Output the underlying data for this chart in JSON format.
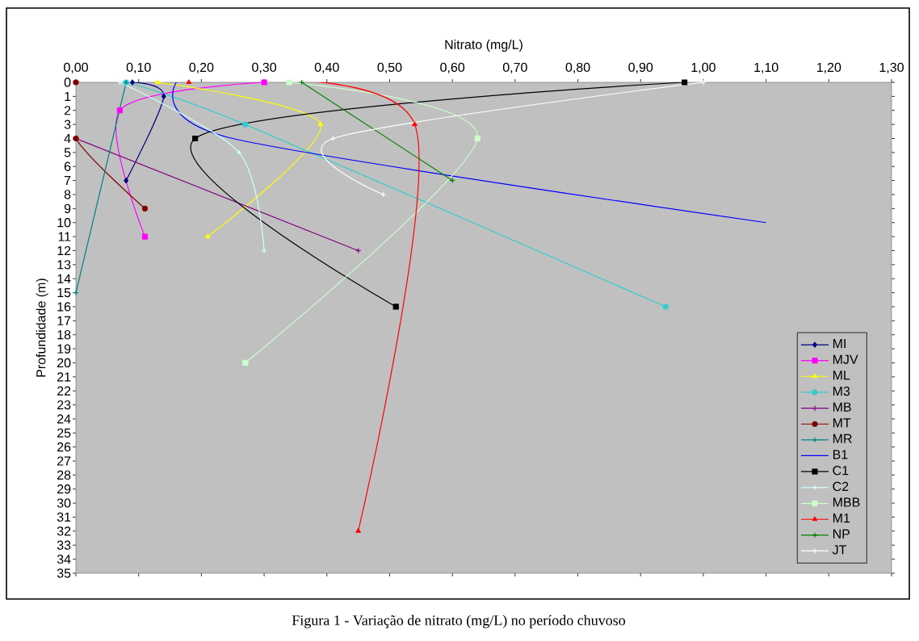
{
  "chart_data": {
    "type": "line",
    "xlabel": "Nitrato (mg/L)",
    "ylabel": "Profundidade (m)",
    "xlim": [
      0,
      1.3
    ],
    "xticks": [
      {
        "value": 0,
        "label": "0,00"
      },
      {
        "value": 0.1,
        "label": "0,10"
      },
      {
        "value": 0.2,
        "label": "0,20"
      },
      {
        "value": 0.3,
        "label": "0,30"
      },
      {
        "value": 0.4,
        "label": "0,40"
      },
      {
        "value": 0.5,
        "label": "0,50"
      },
      {
        "value": 0.6,
        "label": "0,60"
      },
      {
        "value": 0.7,
        "label": "0,70"
      },
      {
        "value": 0.8,
        "label": "0,80"
      },
      {
        "value": 0.9,
        "label": "0,90"
      },
      {
        "value": 1.0,
        "label": "1,00"
      },
      {
        "value": 1.1,
        "label": "1,10"
      },
      {
        "value": 1.2,
        "label": "1,20"
      },
      {
        "value": 1.3,
        "label": "1,30"
      }
    ],
    "ylim": [
      35,
      0
    ],
    "yticks": [
      0,
      1,
      2,
      3,
      4,
      5,
      6,
      7,
      8,
      9,
      10,
      11,
      12,
      13,
      14,
      15,
      16,
      17,
      18,
      19,
      20,
      21,
      22,
      23,
      24,
      25,
      26,
      27,
      28,
      29,
      30,
      31,
      32,
      33,
      34,
      35
    ],
    "legend": "right",
    "series": [
      {
        "name": "MI",
        "color": "#000080",
        "marker": "diamond",
        "x": [
          0.09,
          0.14,
          0.08
        ],
        "values": [
          0,
          1,
          7
        ]
      },
      {
        "name": "MJV",
        "color": "#ff00ff",
        "marker": "square",
        "x": [
          0.3,
          0.07,
          0.11
        ],
        "values": [
          0,
          2,
          11
        ]
      },
      {
        "name": "ML",
        "color": "#ffff00",
        "marker": "triangle",
        "x": [
          0.13,
          0.39,
          0.21
        ],
        "values": [
          0,
          3,
          11
        ]
      },
      {
        "name": "M3",
        "color": "#33cccc",
        "marker": "circle",
        "x": [
          0.08,
          0.27,
          0.94
        ],
        "values": [
          0,
          3,
          16
        ]
      },
      {
        "name": "MB",
        "color": "#800080",
        "marker": "cross",
        "x": [
          0.0,
          0.45
        ],
        "values": [
          4,
          12
        ]
      },
      {
        "name": "MT",
        "color": "#800000",
        "marker": "circle",
        "x": [
          0.0,
          0.0,
          0.11
        ],
        "values": [
          0,
          4,
          9
        ]
      },
      {
        "name": "MR",
        "color": "#008080",
        "marker": "cross",
        "x": [
          0.08,
          0.0
        ],
        "values": [
          0,
          15
        ]
      },
      {
        "name": "B1",
        "color": "#0000ff",
        "marker": "none",
        "x": [
          0.16,
          0.25,
          1.1
        ],
        "values": [
          0,
          4,
          10
        ]
      },
      {
        "name": "C1",
        "color": "#000000",
        "marker": "square",
        "x": [
          0.97,
          0.19,
          0.51
        ],
        "values": [
          0,
          4,
          16
        ]
      },
      {
        "name": "C2",
        "color": "#ccffff",
        "marker": "cross",
        "x": [
          0.07,
          0.26,
          0.3
        ],
        "values": [
          0,
          5,
          12
        ]
      },
      {
        "name": "MBB",
        "color": "#ccffcc",
        "marker": "square",
        "x": [
          0.34,
          0.64,
          0.27
        ],
        "values": [
          0,
          4,
          20
        ]
      },
      {
        "name": "M1",
        "color": "#ff0000",
        "marker": "triangle",
        "x": [
          0.18,
          0.54,
          0.45
        ],
        "values": [
          0,
          3,
          32
        ]
      },
      {
        "name": "NP",
        "color": "#008000",
        "marker": "cross",
        "x": [
          0.36,
          0.6
        ],
        "values": [
          0,
          7
        ]
      },
      {
        "name": "JT",
        "color": "#ffffff",
        "marker": "cross",
        "x": [
          1.0,
          0.41,
          0.49
        ],
        "values": [
          0,
          4,
          8
        ]
      }
    ],
    "annotations": [
      "Figura 1 - Variação de nitrato (mg/L) no período chuvoso"
    ]
  }
}
